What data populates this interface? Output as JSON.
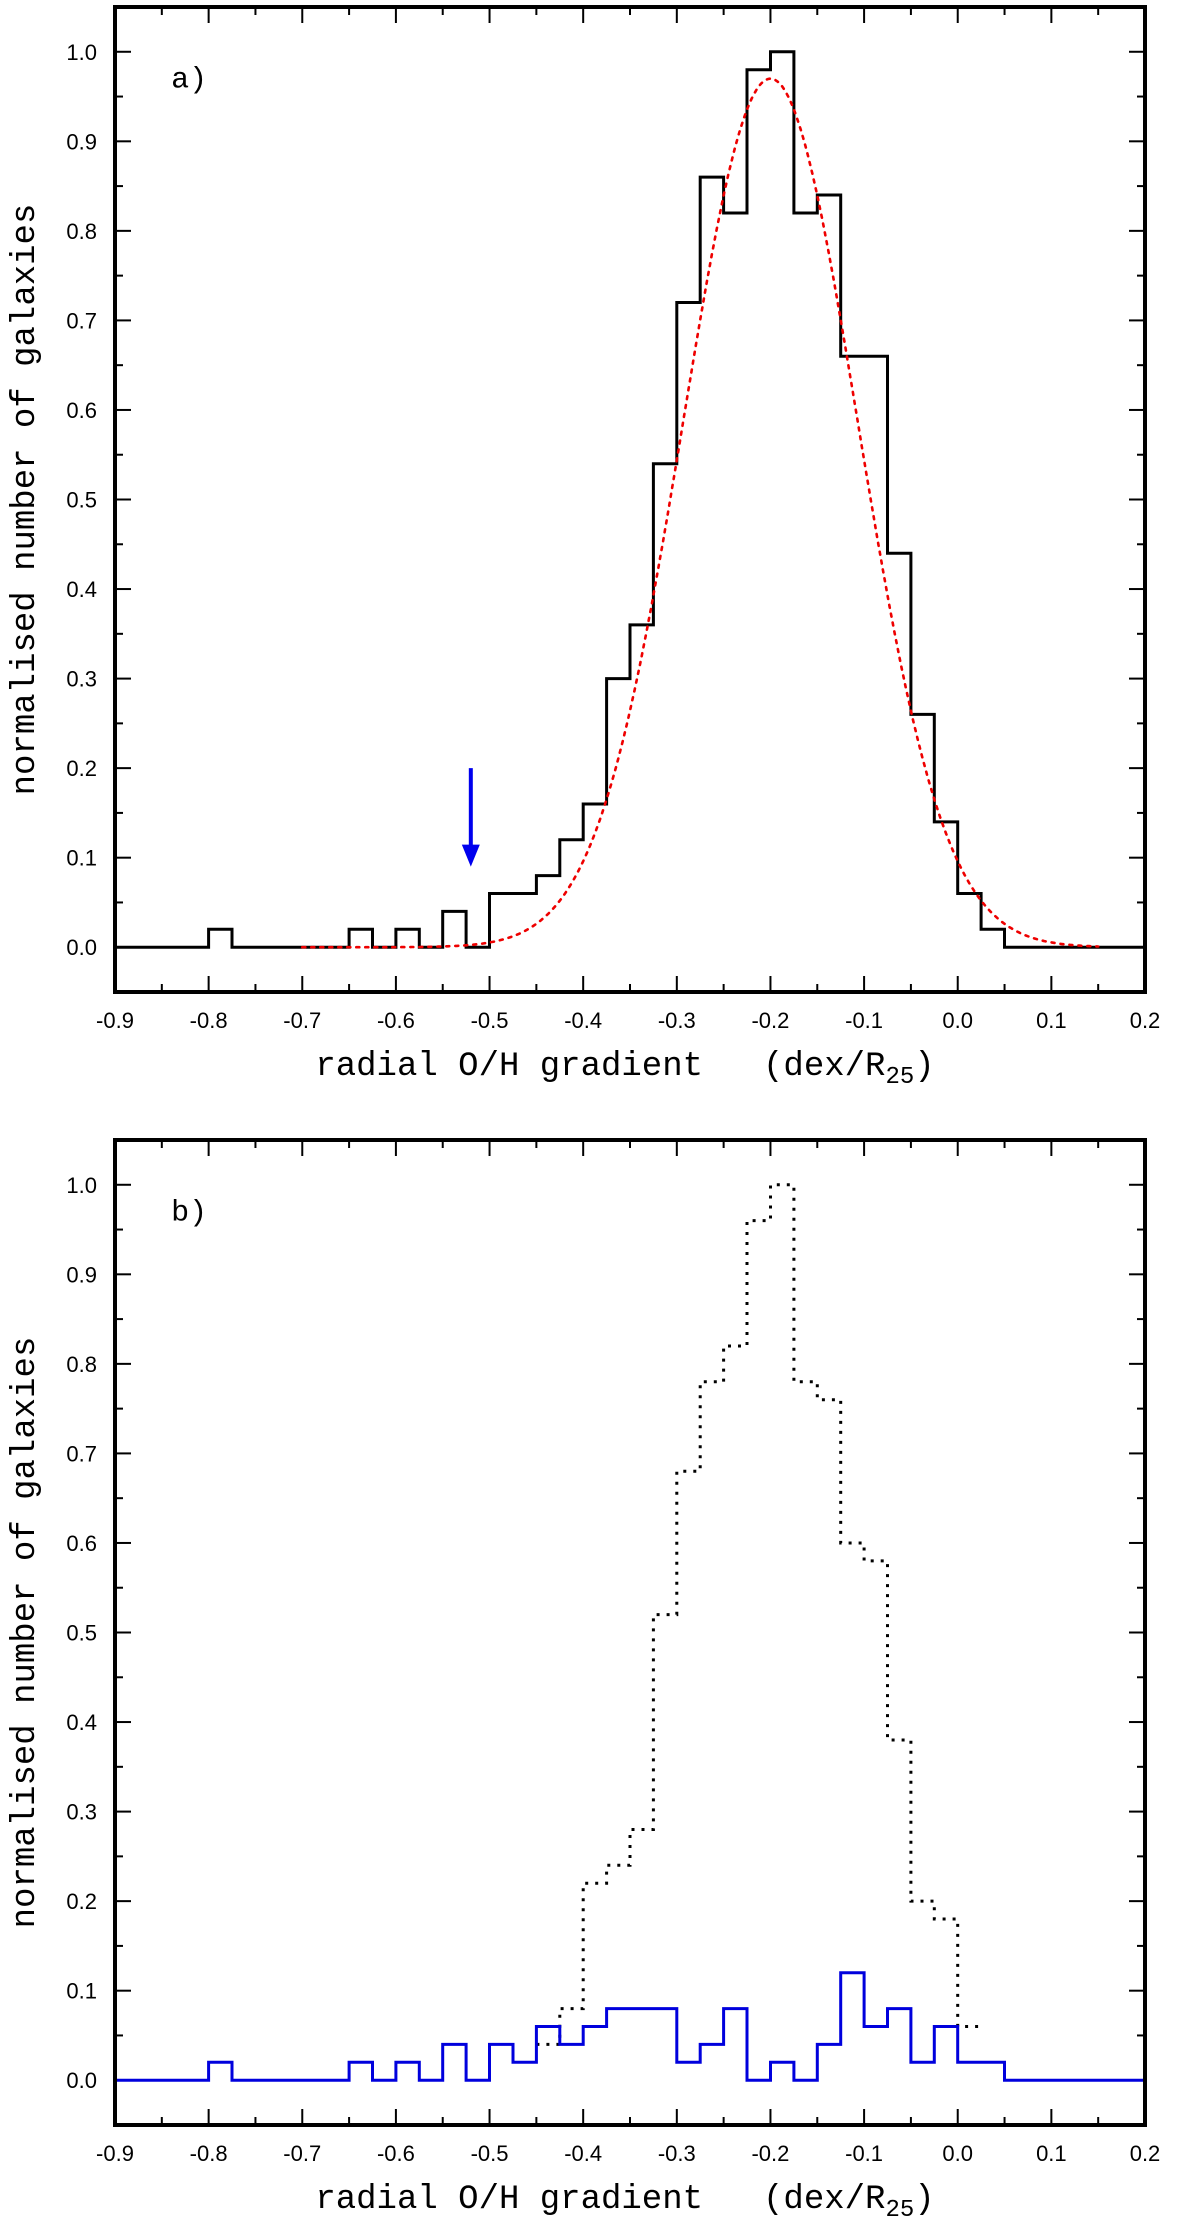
{
  "chart_data": [
    {
      "type": "line",
      "panel_label": "a)",
      "xlabel": "radial O/H gradient",
      "xlabel_unit": "(dex/R",
      "xlabel_unit_sub": "25",
      "xlabel_unit_close": ")",
      "ylabel": "normalised number of galaxies",
      "xlim": [
        -0.9,
        0.2
      ],
      "ylim": [
        -0.05,
        1.05
      ],
      "x_ticks": [
        "-0.9",
        "-0.8",
        "-0.7",
        "-0.6",
        "-0.5",
        "-0.4",
        "-0.3",
        "-0.2",
        "-0.1",
        "0.0",
        "0.1",
        "0.2"
      ],
      "y_ticks": [
        "0.0",
        "0.1",
        "0.2",
        "0.3",
        "0.4",
        "0.5",
        "0.6",
        "0.7",
        "0.8",
        "0.9",
        "1.0"
      ],
      "annotation": {
        "type": "arrow",
        "x": -0.52,
        "y_from": 0.2,
        "y_to": 0.09,
        "color": "#0000ee"
      },
      "series": [
        {
          "style": "step-solid",
          "color": "#000000",
          "bin_edges": [
            -0.9,
            -0.8,
            -0.775,
            -0.65,
            -0.625,
            -0.6,
            -0.575,
            -0.55,
            -0.525,
            -0.5,
            -0.45,
            -0.425,
            -0.4,
            -0.375,
            -0.35,
            -0.325,
            -0.3,
            -0.275,
            -0.25,
            -0.225,
            -0.2,
            -0.175,
            -0.15,
            -0.125,
            -0.075,
            -0.05,
            -0.025,
            0.0,
            0.025,
            0.05,
            0.2
          ],
          "values": [
            0.0,
            0.02,
            0.0,
            0.02,
            0.0,
            0.02,
            0.0,
            0.04,
            0.0,
            0.06,
            0.08,
            0.12,
            0.16,
            0.3,
            0.36,
            0.54,
            0.72,
            0.86,
            0.82,
            0.98,
            1.0,
            0.82,
            0.84,
            0.66,
            0.44,
            0.26,
            0.14,
            0.06,
            0.02,
            0.0
          ]
        },
        {
          "style": "gaussian-dotted",
          "color": "#ee0000",
          "fit": {
            "amplitude": 0.97,
            "mean": -0.2,
            "sigma": 0.093,
            "x_range": [
              -0.7,
              0.15
            ]
          }
        }
      ]
    },
    {
      "type": "line",
      "panel_label": "b)",
      "xlabel": "radial O/H gradient",
      "xlabel_unit": "(dex/R",
      "xlabel_unit_sub": "25",
      "xlabel_unit_close": ")",
      "ylabel": "normalised number of galaxies",
      "xlim": [
        -0.9,
        0.2
      ],
      "ylim": [
        -0.05,
        1.05
      ],
      "x_ticks": [
        "-0.9",
        "-0.8",
        "-0.7",
        "-0.6",
        "-0.5",
        "-0.4",
        "-0.3",
        "-0.2",
        "-0.1",
        "0.0",
        "0.1",
        "0.2"
      ],
      "y_ticks": [
        "0.0",
        "0.1",
        "0.2",
        "0.3",
        "0.4",
        "0.5",
        "0.6",
        "0.7",
        "0.8",
        "0.9",
        "1.0"
      ],
      "series": [
        {
          "style": "step-dotted",
          "color": "#000000",
          "bin_edges": [
            -0.45,
            -0.425,
            -0.4,
            -0.375,
            -0.35,
            -0.325,
            -0.3,
            -0.275,
            -0.25,
            -0.225,
            -0.2,
            -0.175,
            -0.15,
            -0.125,
            -0.1,
            -0.075,
            -0.05,
            -0.025,
            0.0,
            0.025
          ],
          "values": [
            0.04,
            0.08,
            0.22,
            0.24,
            0.28,
            0.52,
            0.68,
            0.78,
            0.82,
            0.96,
            1.0,
            0.78,
            0.76,
            0.6,
            0.58,
            0.38,
            0.2,
            0.18,
            0.06
          ]
        },
        {
          "style": "step-solid",
          "color": "#0000dd",
          "bin_edges": [
            -0.9,
            -0.8,
            -0.775,
            -0.65,
            -0.625,
            -0.6,
            -0.575,
            -0.55,
            -0.525,
            -0.5,
            -0.475,
            -0.45,
            -0.425,
            -0.4,
            -0.375,
            -0.325,
            -0.3,
            -0.275,
            -0.25,
            -0.225,
            -0.2,
            -0.175,
            -0.15,
            -0.125,
            -0.1,
            -0.075,
            -0.05,
            -0.025,
            0.0,
            0.05,
            0.2
          ],
          "values": [
            0.0,
            0.02,
            0.0,
            0.02,
            0.0,
            0.02,
            0.0,
            0.04,
            0.0,
            0.04,
            0.02,
            0.06,
            0.04,
            0.06,
            0.08,
            0.08,
            0.02,
            0.04,
            0.08,
            0.0,
            0.02,
            0.0,
            0.04,
            0.12,
            0.06,
            0.08,
            0.02,
            0.06,
            0.02,
            0.0
          ]
        }
      ]
    }
  ]
}
